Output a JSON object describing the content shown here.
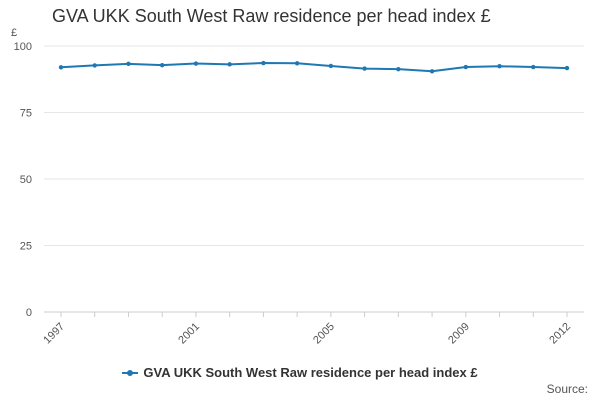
{
  "chart_data": {
    "type": "line",
    "title": "GVA UKK South West Raw residence per head index £",
    "ylabel": "£",
    "xlabel": "",
    "x": [
      1997,
      1998,
      1999,
      2000,
      2001,
      2002,
      2003,
      2004,
      2005,
      2006,
      2007,
      2008,
      2009,
      2010,
      2011,
      2012
    ],
    "x_tick_labels": [
      "1997",
      "2001",
      "2005",
      "2009",
      "2012"
    ],
    "y_tick_labels": [
      "0",
      "25",
      "50",
      "75",
      "100"
    ],
    "ylim": [
      0,
      100
    ],
    "grid": true,
    "legend_position": "bottom",
    "series": [
      {
        "name": "GVA UKK South West Raw residence per head index £",
        "color": "#1f78b4",
        "values": [
          92.0,
          92.7,
          93.3,
          92.8,
          93.4,
          93.1,
          93.6,
          93.5,
          92.5,
          91.5,
          91.3,
          90.5,
          92.1,
          92.4,
          92.1,
          91.7
        ]
      }
    ]
  },
  "source_label": "Source:"
}
